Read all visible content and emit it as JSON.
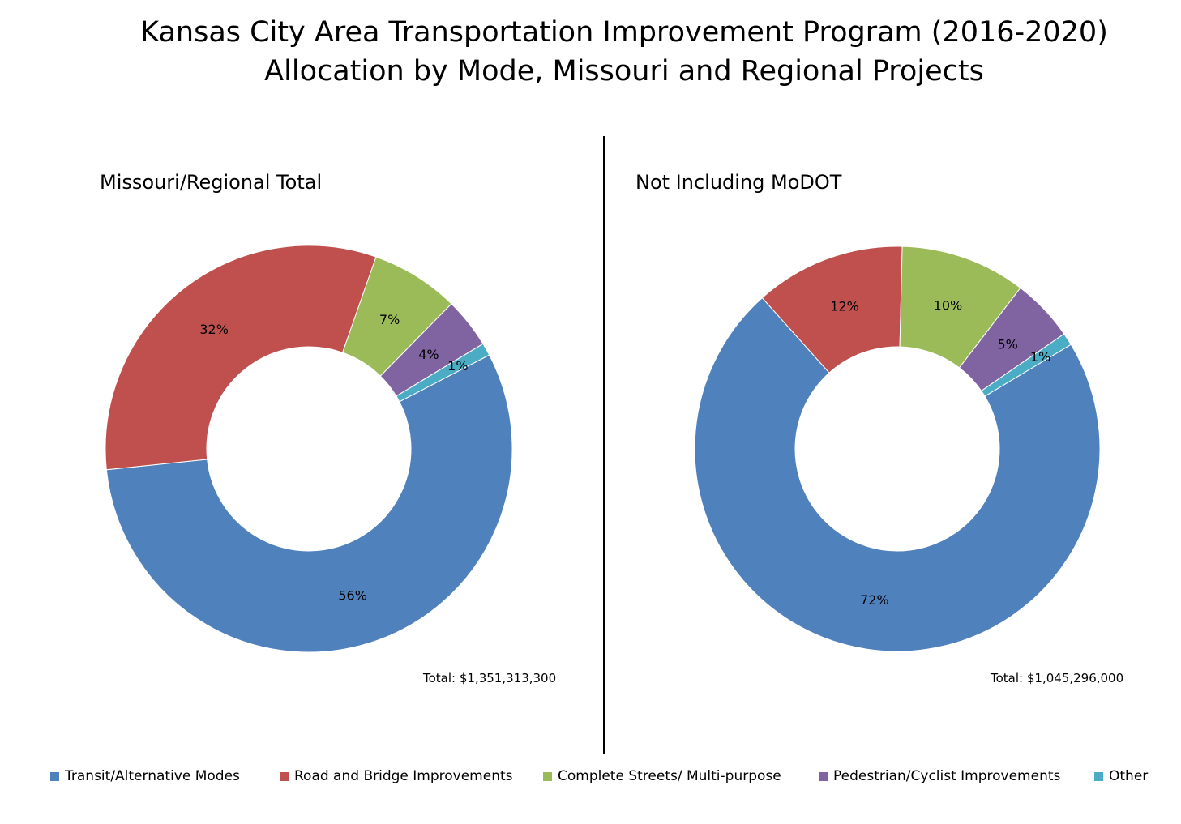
{
  "title_line1": "Kansas City Area Transportation Improvement Program (2016-2020)",
  "title_line2": "Allocation by Mode, Missouri and Regional Projects",
  "colors": {
    "transit": "#4F81BD",
    "road": "#C0504D",
    "complete": "#9BBB59",
    "pedestrian": "#8064A2",
    "other": "#4BACC6"
  },
  "legend": [
    {
      "label": "Transit/Alternative Modes",
      "color_key": "transit"
    },
    {
      "label": "Road and Bridge Improvements",
      "color_key": "road"
    },
    {
      "label": "Complete Streets/ Multi-purpose",
      "color_key": "complete"
    },
    {
      "label": "Pedestrian/Cyclist Improvements",
      "color_key": "pedestrian"
    },
    {
      "label": "Other",
      "color_key": "other"
    }
  ],
  "chart_data": [
    {
      "type": "pie",
      "variant": "donut",
      "title": "Missouri/Regional Total",
      "total_label": "Total: $1,351,313,300",
      "categories": [
        "Transit/Alternative Modes",
        "Road and Bridge Improvements",
        "Complete Streets/ Multi-purpose",
        "Pedestrian/Cyclist Improvements",
        "Other"
      ],
      "values": [
        56,
        32,
        7,
        4,
        1
      ],
      "data_labels": [
        "56%",
        "32%",
        "7%",
        "4%",
        "1%"
      ]
    },
    {
      "type": "pie",
      "variant": "donut",
      "title": "Not Including MoDOT",
      "total_label": "Total: $1,045,296,000",
      "categories": [
        "Transit/Alternative Modes",
        "Road and Bridge Improvements",
        "Complete Streets/ Multi-purpose",
        "Pedestrian/Cyclist Improvements",
        "Other"
      ],
      "values": [
        72,
        12,
        10,
        5,
        1
      ],
      "data_labels": [
        "72%",
        "12%",
        "10%",
        "5%",
        "1%"
      ]
    }
  ]
}
